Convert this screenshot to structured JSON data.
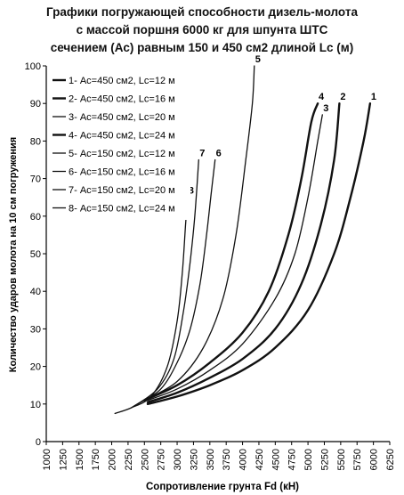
{
  "chart_data": {
    "type": "line",
    "title_lines": [
      "Графики погружающей способности дизель-молота",
      "с массой поршня 6000 кг для шпунта ШТС",
      "сечением (Ас) равным 150 и 450 см2 длиной Lc (м)"
    ],
    "xlabel": "Сопротивление грунта Fd (кН)",
    "ylabel": "Количество ударов молота на 10 см погружения",
    "xlim": [
      1000,
      6250
    ],
    "ylim": [
      0,
      100
    ],
    "x_ticks": [
      1000,
      1250,
      1500,
      1750,
      2000,
      2250,
      2500,
      2750,
      3000,
      3250,
      3500,
      3750,
      4000,
      4250,
      4500,
      4750,
      5000,
      5250,
      5500,
      5750,
      6000,
      6250
    ],
    "y_ticks": [
      0,
      10,
      20,
      30,
      40,
      50,
      60,
      70,
      80,
      90,
      100
    ],
    "grid": false,
    "legend_position": "top-left",
    "series": [
      {
        "label": "1",
        "name": "1- Ас=450 см2, Lc=12 м",
        "heavy": true,
        "points": [
          [
            2550,
            10
          ],
          [
            3000,
            12
          ],
          [
            3500,
            15
          ],
          [
            4000,
            19
          ],
          [
            4500,
            25
          ],
          [
            5000,
            35
          ],
          [
            5400,
            50
          ],
          [
            5650,
            65
          ],
          [
            5850,
            80
          ],
          [
            5950,
            90
          ]
        ]
      },
      {
        "label": "2",
        "name": "2- Ас=450 см2, Lc=16 м",
        "heavy": true,
        "points": [
          [
            2550,
            10.5
          ],
          [
            3000,
            13
          ],
          [
            3500,
            17
          ],
          [
            4000,
            22
          ],
          [
            4500,
            30
          ],
          [
            4900,
            42
          ],
          [
            5200,
            58
          ],
          [
            5400,
            75
          ],
          [
            5480,
            90
          ]
        ]
      },
      {
        "label": "3",
        "name": "3- Ас=450 см2, Lc=20 м",
        "heavy": false,
        "points": [
          [
            2550,
            11
          ],
          [
            3000,
            14
          ],
          [
            3500,
            19
          ],
          [
            4000,
            26
          ],
          [
            4500,
            38
          ],
          [
            4800,
            50
          ],
          [
            5000,
            65
          ],
          [
            5150,
            80
          ],
          [
            5220,
            87
          ]
        ]
      },
      {
        "label": "4",
        "name": "4- Ас=450 см2, Lc=24 м",
        "heavy": true,
        "points": [
          [
            2500,
            11
          ],
          [
            3000,
            15
          ],
          [
            3500,
            21
          ],
          [
            4000,
            29
          ],
          [
            4400,
            40
          ],
          [
            4700,
            55
          ],
          [
            4900,
            70
          ],
          [
            5050,
            85
          ],
          [
            5150,
            90
          ]
        ]
      },
      {
        "label": "5",
        "name": "5- Ас=150 см2, Lc=12 м",
        "heavy": false,
        "points": [
          [
            2500,
            11
          ],
          [
            3000,
            16
          ],
          [
            3400,
            25
          ],
          [
            3700,
            38
          ],
          [
            3900,
            55
          ],
          [
            4050,
            75
          ],
          [
            4150,
            90
          ],
          [
            4180,
            100
          ]
        ]
      },
      {
        "label": "6",
        "name": "6- Ас=150 см2, Lc=16 м",
        "heavy": false,
        "points": [
          [
            2400,
            10
          ],
          [
            2750,
            14
          ],
          [
            3000,
            21
          ],
          [
            3200,
            30
          ],
          [
            3350,
            42
          ],
          [
            3450,
            55
          ],
          [
            3520,
            66
          ],
          [
            3580,
            75
          ]
        ]
      },
      {
        "label": "7",
        "name": "7- Ас=150 см2, Lc=20 м",
        "heavy": false,
        "points": [
          [
            2300,
            9
          ],
          [
            2700,
            14
          ],
          [
            2950,
            22
          ],
          [
            3100,
            35
          ],
          [
            3200,
            48
          ],
          [
            3270,
            60
          ],
          [
            3330,
            75
          ]
        ]
      },
      {
        "label": "8",
        "name": "8- Ас=150 см2, Lc=24 м",
        "heavy": false,
        "points": [
          [
            2050,
            7.5
          ],
          [
            2300,
            9
          ],
          [
            2600,
            12
          ],
          [
            2850,
            20
          ],
          [
            3000,
            32
          ],
          [
            3080,
            45
          ],
          [
            3130,
            58
          ],
          [
            3160,
            65
          ]
        ]
      }
    ]
  }
}
